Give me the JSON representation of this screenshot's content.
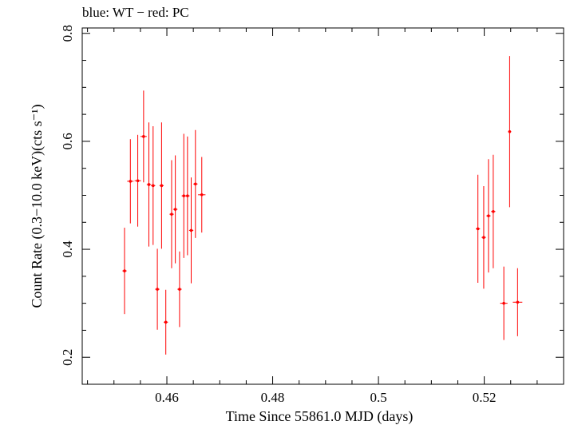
{
  "chart_data": {
    "type": "scatter",
    "title": "blue: WT − red: PC",
    "xlabel": "Time Since 55861.0 MJD (days)",
    "ylabel": "Count Rate (0.3−10.0 keV)(cts s⁻¹)",
    "xlim": [
      0.444,
      0.535
    ],
    "ylim": [
      0.15,
      0.81
    ],
    "x_ticks": [
      0.46,
      0.48,
      0.5,
      0.52
    ],
    "x_tick_labels": [
      "0.46",
      "0.48",
      "0.5",
      "0.52"
    ],
    "y_ticks": [
      0.2,
      0.4,
      0.6,
      0.8
    ],
    "y_tick_labels": [
      "0.2",
      "0.4",
      "0.6",
      "0.8"
    ],
    "grid": false,
    "series": [
      {
        "color": "#ff0000",
        "points": [
          {
            "x": 0.452,
            "xerr": 0.0004,
            "y": 0.36,
            "yerr": 0.08
          },
          {
            "x": 0.4531,
            "xerr": 0.0006,
            "y": 0.526,
            "yerr": 0.078
          },
          {
            "x": 0.4545,
            "xerr": 0.0006,
            "y": 0.527,
            "yerr": 0.085
          },
          {
            "x": 0.4556,
            "xerr": 0.0006,
            "y": 0.609,
            "yerr": 0.085
          },
          {
            "x": 0.4566,
            "xerr": 0.0004,
            "y": 0.52,
            "yerr": 0.115
          },
          {
            "x": 0.4574,
            "xerr": 0.0004,
            "y": 0.518,
            "yerr": 0.11
          },
          {
            "x": 0.4582,
            "xerr": 0.0004,
            "y": 0.326,
            "yerr": 0.075
          },
          {
            "x": 0.459,
            "xerr": 0.0004,
            "y": 0.518,
            "yerr": 0.117
          },
          {
            "x": 0.4598,
            "xerr": 0.0004,
            "y": 0.265,
            "yerr": 0.06
          },
          {
            "x": 0.4609,
            "xerr": 0.0004,
            "y": 0.465,
            "yerr": 0.1
          },
          {
            "x": 0.4616,
            "xerr": 0.0004,
            "y": 0.474,
            "yerr": 0.1
          },
          {
            "x": 0.4624,
            "xerr": 0.0004,
            "y": 0.326,
            "yerr": 0.07
          },
          {
            "x": 0.4632,
            "xerr": 0.0004,
            "y": 0.499,
            "yerr": 0.115
          },
          {
            "x": 0.4639,
            "xerr": 0.0004,
            "y": 0.499,
            "yerr": 0.11
          },
          {
            "x": 0.4646,
            "xerr": 0.0004,
            "y": 0.435,
            "yerr": 0.098
          },
          {
            "x": 0.4654,
            "xerr": 0.0004,
            "y": 0.521,
            "yerr": 0.1
          },
          {
            "x": 0.4666,
            "xerr": 0.0007,
            "y": 0.501,
            "yerr": 0.07
          },
          {
            "x": 0.5188,
            "xerr": 0.0004,
            "y": 0.438,
            "yerr": 0.1
          },
          {
            "x": 0.5199,
            "xerr": 0.0004,
            "y": 0.422,
            "yerr": 0.095
          },
          {
            "x": 0.5208,
            "xerr": 0.0004,
            "y": 0.462,
            "yerr": 0.105
          },
          {
            "x": 0.5217,
            "xerr": 0.0004,
            "y": 0.47,
            "yerr": 0.105
          },
          {
            "x": 0.5237,
            "xerr": 0.0007,
            "y": 0.3,
            "yerr": 0.068
          },
          {
            "x": 0.5248,
            "xerr": 0.0003,
            "y": 0.618,
            "yerr": 0.14
          },
          {
            "x": 0.5263,
            "xerr": 0.0009,
            "y": 0.302,
            "yerr": 0.063
          }
        ]
      }
    ]
  }
}
